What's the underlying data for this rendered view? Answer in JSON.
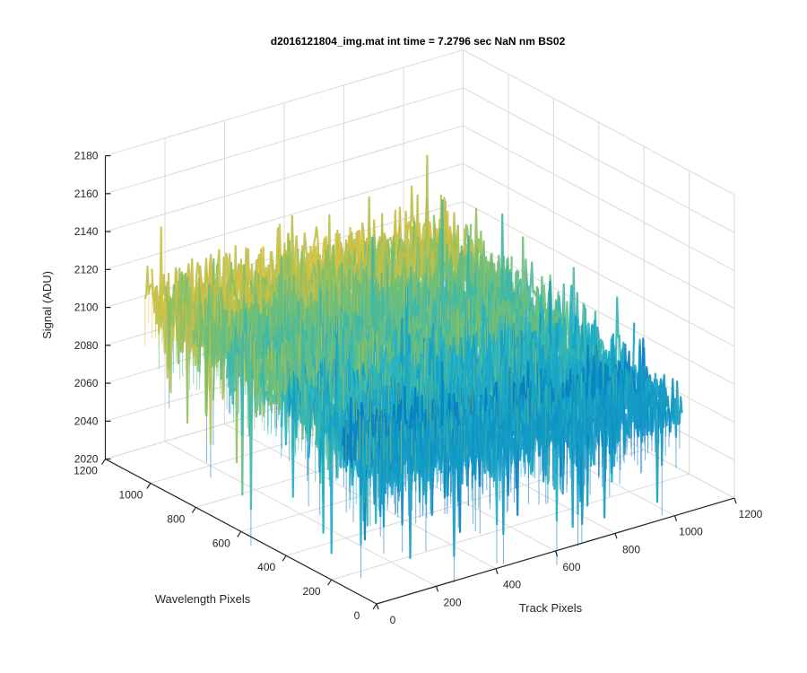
{
  "chart_data": {
    "type": "surface",
    "title": "d2016121804_img.mat int time = 7.2796 sec  NaN nm BS02",
    "xlabel": "Track Pixels",
    "ylabel": "Wavelength Pixels",
    "zlabel": "Signal (ADU)",
    "xlim": [
      0,
      1200
    ],
    "ylim": [
      0,
      1200
    ],
    "zlim": [
      2020,
      2180
    ],
    "x_ticks": [
      "0",
      "200",
      "400",
      "600",
      "800",
      "1000",
      "1200"
    ],
    "y_ticks": [
      "0",
      "200",
      "400",
      "600",
      "800",
      "1000",
      "1200"
    ],
    "z_ticks": [
      "2020",
      "2040",
      "2060",
      "2080",
      "2100",
      "2120",
      "2140",
      "2160",
      "2180"
    ],
    "grid": true,
    "colormap": "parula",
    "surface_extent": {
      "x": [
        0,
        1024
      ],
      "y": [
        0,
        1024
      ]
    },
    "signal_mean_by_x": {
      "x": [
        0,
        200,
        400,
        600,
        800,
        1000,
        1024
      ],
      "z": [
        2108,
        2102,
        2098,
        2097,
        2095,
        2090,
        2088
      ]
    },
    "signal_mean_by_y": {
      "y": [
        0,
        200,
        400,
        600,
        800,
        1000,
        1024
      ],
      "z": [
        2085,
        2090,
        2095,
        2100,
        2106,
        2110,
        2112
      ]
    },
    "noise_range": [
      2030,
      2170
    ],
    "colors": {
      "low": "#0072bd",
      "mid_low": "#1fb3c9",
      "mid": "#7cc06a",
      "high": "#f2c031",
      "axis": "#262626",
      "grid": "#dadada"
    }
  }
}
